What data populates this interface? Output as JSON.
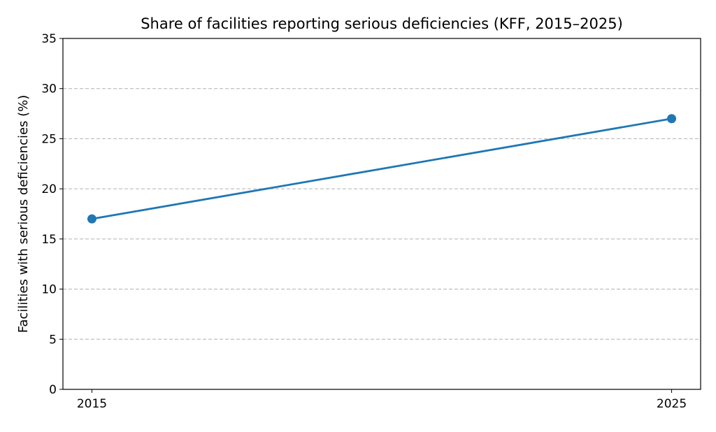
{
  "chart_data": {
    "type": "line",
    "title": "Share of facilities reporting serious deficiencies (KFF, 2015–2025)",
    "xlabel": "",
    "ylabel": "Facilities with serious deficiencies (%)",
    "x": [
      2015,
      2025
    ],
    "xticks": [
      "2015",
      "2025"
    ],
    "series": [
      {
        "values": [
          17,
          27
        ]
      }
    ],
    "xlim": [
      2014.5,
      2025.5
    ],
    "ylim": [
      0,
      35
    ],
    "yticks": [
      0,
      5,
      10,
      15,
      20,
      25,
      30,
      35
    ],
    "grid": "y-dashed",
    "markers": "circle",
    "colors": {
      "line": "#1f77b4",
      "grid": "#b0b0b0"
    }
  }
}
